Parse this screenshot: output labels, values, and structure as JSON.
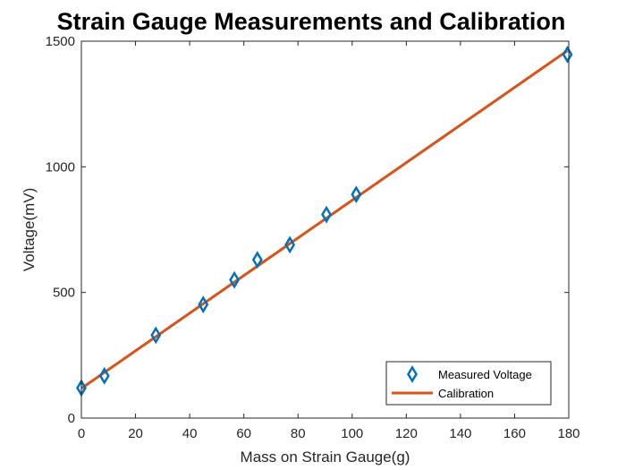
{
  "chart_data": {
    "type": "scatter",
    "title": "Strain Gauge Measurements and Calibration",
    "xlabel": "Mass on Strain Gauge(g)",
    "ylabel": "Voltage(mV)",
    "xlim": [
      0,
      180
    ],
    "ylim": [
      0,
      1500
    ],
    "xticks": [
      0,
      20,
      40,
      60,
      80,
      100,
      120,
      140,
      160,
      180
    ],
    "yticks": [
      0,
      500,
      1000,
      1500
    ],
    "grid": false,
    "legend_position": "bottom-right",
    "series": [
      {
        "name": "Measured Voltage",
        "kind": "scatter",
        "marker": "diamond",
        "color": "#0072BD",
        "x": [
          0,
          8.5,
          27.5,
          45,
          56.5,
          65,
          77,
          90.5,
          101.5,
          179.5
        ],
        "y": [
          120,
          168,
          330,
          452,
          550,
          630,
          690,
          810,
          890,
          1447
        ]
      },
      {
        "name": "Calibration",
        "kind": "line",
        "color": "#D95319",
        "x": [
          0,
          179.5
        ],
        "y": [
          118,
          1462
        ]
      }
    ]
  }
}
